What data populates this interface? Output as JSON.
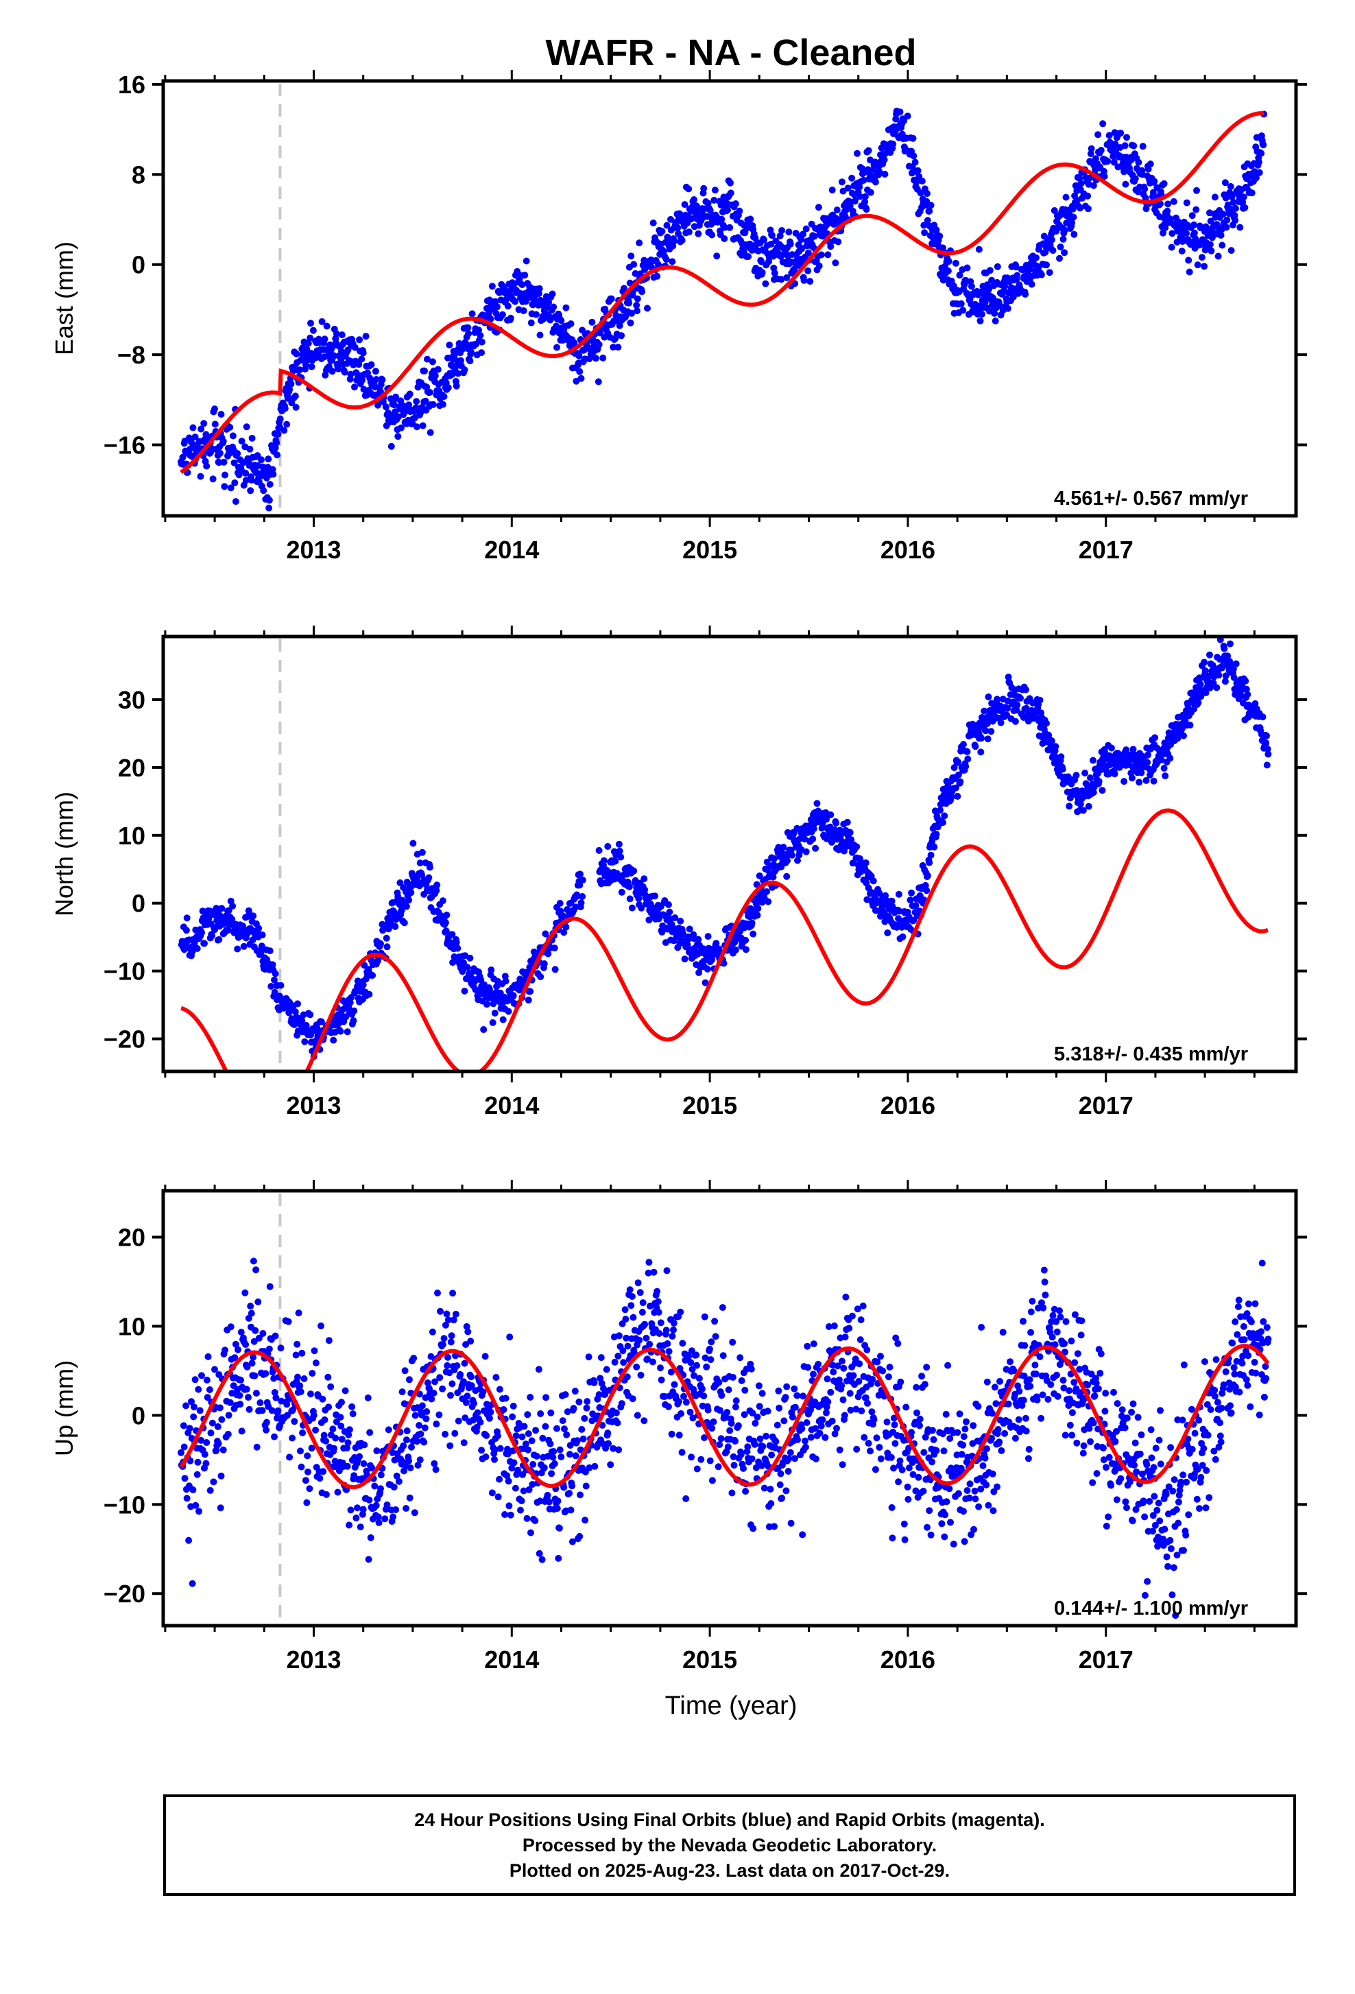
{
  "title": "WAFR  - NA - Cleaned",
  "xlabel": "Time (year)",
  "footer": {
    "line1": "24 Hour Positions Using Final Orbits (blue) and Rapid Orbits (magenta).",
    "line2": "Processed by the Nevada Geodetic Laboratory.",
    "line3": "Plotted on 2025-Aug-23. Last data on 2017-Oct-29."
  },
  "colors": {
    "final_orbits": "#0000ff",
    "model": "#ff0000",
    "event_line": "#c8c8c8"
  },
  "chart_data": [
    {
      "type": "scatter",
      "component": "east",
      "ylabel": "East (mm)",
      "xlim": [
        2012.24,
        2017.96
      ],
      "ylim": [
        -22.3,
        16.3
      ],
      "yticks": [
        16,
        8,
        0,
        -8,
        -16
      ],
      "xticks": [
        2013,
        2014,
        2015,
        2016,
        2017
      ],
      "grid": false,
      "event_line_x": 2012.83,
      "rate_label": "4.561+/- 0.567 mm/yr",
      "model_params": {
        "a": -3.9,
        "rate": 4.561,
        "step": 2.0,
        "amp": 2.7,
        "phase_day": 0.75
      },
      "data_anchors": [
        [
          2012.33,
          -17.5
        ],
        [
          2012.5,
          -15.5
        ],
        [
          2012.7,
          -18.0
        ],
        [
          2012.78,
          -19.5
        ],
        [
          2012.84,
          -12.5
        ],
        [
          2013.0,
          -7.2
        ],
        [
          2013.2,
          -8.5
        ],
        [
          2013.4,
          -13.0
        ],
        [
          2013.6,
          -11.5
        ],
        [
          2013.8,
          -7.0
        ],
        [
          2014.0,
          -2.0
        ],
        [
          2014.2,
          -4.5
        ],
        [
          2014.35,
          -8.3
        ],
        [
          2014.55,
          -4.0
        ],
        [
          2014.75,
          1.5
        ],
        [
          2014.9,
          4.5
        ],
        [
          2015.1,
          4.5
        ],
        [
          2015.25,
          1.0
        ],
        [
          2015.45,
          0.5
        ],
        [
          2015.65,
          4.0
        ],
        [
          2015.85,
          9.0
        ],
        [
          2015.97,
          12.5
        ],
        [
          2016.05,
          7.5
        ],
        [
          2016.2,
          -1.5
        ],
        [
          2016.35,
          -3.0
        ],
        [
          2016.5,
          -2.5
        ],
        [
          2016.65,
          0.0
        ],
        [
          2016.8,
          4.0
        ],
        [
          2016.95,
          9.0
        ],
        [
          2017.05,
          10.5
        ],
        [
          2017.2,
          7.5
        ],
        [
          2017.35,
          3.0
        ],
        [
          2017.5,
          2.5
        ],
        [
          2017.65,
          4.5
        ],
        [
          2017.8,
          10.5
        ]
      ]
    },
    {
      "type": "scatter",
      "component": "north",
      "ylabel": "North (mm)",
      "xlim": [
        2012.24,
        2017.96
      ],
      "ylim": [
        -24.8,
        39.3
      ],
      "yticks": [
        30,
        20,
        10,
        0,
        -10,
        -20
      ],
      "xticks": [
        2013,
        2014,
        2015,
        2016,
        2017
      ],
      "grid": false,
      "event_line_x": 2012.83,
      "rate_label": "5.318+/- 0.435 mm/yr",
      "model_params": {
        "a": -11.3,
        "rate": 5.318,
        "step": 2.5,
        "amp": 10.2,
        "phase_day": 0.3
      },
      "data_anchors": [
        [
          2012.33,
          -7.0
        ],
        [
          2012.5,
          -2.5
        ],
        [
          2012.7,
          -3.5
        ],
        [
          2012.83,
          -14.0
        ],
        [
          2013.0,
          -20.5
        ],
        [
          2013.2,
          -15.0
        ],
        [
          2013.4,
          -2.0
        ],
        [
          2013.55,
          4.5
        ],
        [
          2013.7,
          -6.5
        ],
        [
          2013.85,
          -13.0
        ],
        [
          2014.0,
          -14.5
        ],
        [
          2014.15,
          -8.0
        ],
        [
          2014.35,
          2.5
        ],
        [
          2014.42,
          5.0
        ],
        [
          2014.55,
          5.0
        ],
        [
          2014.75,
          -2.0
        ],
        [
          2014.9,
          -6.5
        ],
        [
          2015.0,
          -8.5
        ],
        [
          2015.15,
          -5.0
        ],
        [
          2015.35,
          6.0
        ],
        [
          2015.55,
          12.0
        ],
        [
          2015.7,
          9.0
        ],
        [
          2015.85,
          0.0
        ],
        [
          2015.98,
          -2.5
        ],
        [
          2016.05,
          -1.5
        ],
        [
          2016.15,
          12.0
        ],
        [
          2016.3,
          23.0
        ],
        [
          2016.5,
          30.0
        ],
        [
          2016.65,
          28.5
        ],
        [
          2016.8,
          17.5
        ],
        [
          2016.9,
          15.5
        ],
        [
          2017.0,
          21.5
        ],
        [
          2017.15,
          21.0
        ],
        [
          2017.3,
          22.0
        ],
        [
          2017.5,
          33.0
        ],
        [
          2017.6,
          36.0
        ],
        [
          2017.75,
          28.0
        ],
        [
          2017.82,
          22.5
        ]
      ]
    },
    {
      "type": "scatter",
      "component": "up",
      "ylabel": "Up (mm)",
      "xlim": [
        2012.24,
        2017.96
      ],
      "ylim": [
        -23.6,
        25.2
      ],
      "yticks": [
        20,
        10,
        0,
        -10,
        -20
      ],
      "xticks": [
        2013,
        2014,
        2015,
        2016,
        2017
      ],
      "grid": false,
      "event_line_x": 2012.83,
      "rate_label": "0.144+/- 1.100 mm/yr",
      "model_params": {
        "a": -0.2,
        "rate": 0.144,
        "step": 0.0,
        "amp": 7.6,
        "phase_day": 0.7
      },
      "data_anchors": [
        [
          2012.33,
          -6.0
        ],
        [
          2012.7,
          7.0
        ],
        [
          2013.0,
          -2.0
        ],
        [
          2013.3,
          -9.0
        ],
        [
          2013.7,
          7.0
        ],
        [
          2014.0,
          -5.0
        ],
        [
          2014.3,
          -7.0
        ],
        [
          2014.7,
          11.0
        ],
        [
          2015.0,
          0.0
        ],
        [
          2015.3,
          -5.0
        ],
        [
          2015.7,
          6.0
        ],
        [
          2016.0,
          -4.0
        ],
        [
          2016.3,
          -7.0
        ],
        [
          2016.7,
          8.0
        ],
        [
          2017.0,
          -1.0
        ],
        [
          2017.3,
          -12.0
        ],
        [
          2017.7,
          8.0
        ],
        [
          2017.82,
          6.0
        ]
      ]
    }
  ]
}
